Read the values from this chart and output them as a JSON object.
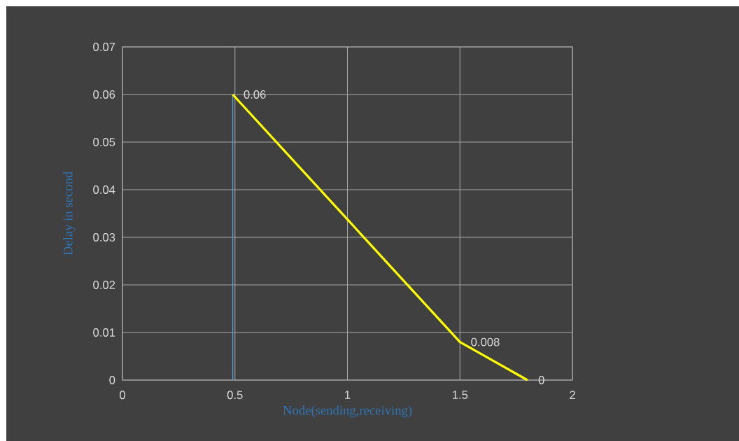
{
  "chart_data": {
    "type": "line",
    "xlabel": "Node(sending,receiving)",
    "ylabel": "Delay in second",
    "xlim": [
      0,
      2
    ],
    "xticks": [
      0,
      0.5,
      1,
      1.5,
      2
    ],
    "ylim": [
      0,
      0.07
    ],
    "yticks": [
      0,
      0.01,
      0.02,
      0.03,
      0.04,
      0.05,
      0.06,
      0.07
    ],
    "grid": true,
    "series": [
      {
        "color": "#5b9bd5",
        "x": [
          0.49,
          0.49
        ],
        "values": [
          0,
          0.06
        ]
      },
      {
        "color": "#ffff00",
        "x": [
          0.49,
          1.5,
          1.8
        ],
        "values": [
          0.06,
          0.008,
          0
        ],
        "value_labels": [
          "0.06",
          "0.008",
          "0"
        ]
      }
    ]
  }
}
